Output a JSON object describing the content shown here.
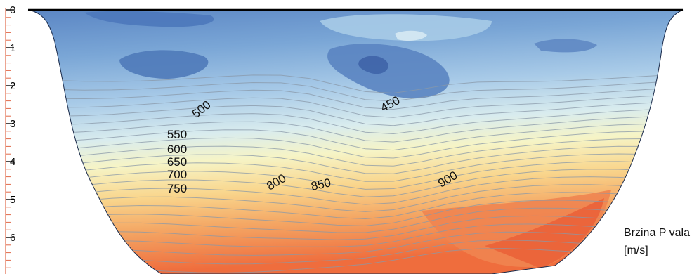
{
  "chart_data": {
    "type": "contour",
    "y_axis": {
      "ticks": [
        "0",
        "1",
        "2",
        "3",
        "4",
        "5",
        "6"
      ],
      "range": [
        0,
        7
      ]
    },
    "contour_levels": [
      450,
      500,
      550,
      600,
      650,
      700,
      750,
      800,
      850,
      900
    ],
    "contour_labels": [
      "450",
      "500",
      "550",
      "600",
      "650",
      "700",
      "750",
      "800",
      "850",
      "900"
    ],
    "legend": {
      "title_line1": "Brzina P vala",
      "title_line2": "[m/s]"
    },
    "colors": {
      "low": "#4f7fc0",
      "mid": "#f6f4c6",
      "high": "#ef6d3d",
      "contour_line": "#8a98a8",
      "axis": "#e06a4a"
    }
  }
}
